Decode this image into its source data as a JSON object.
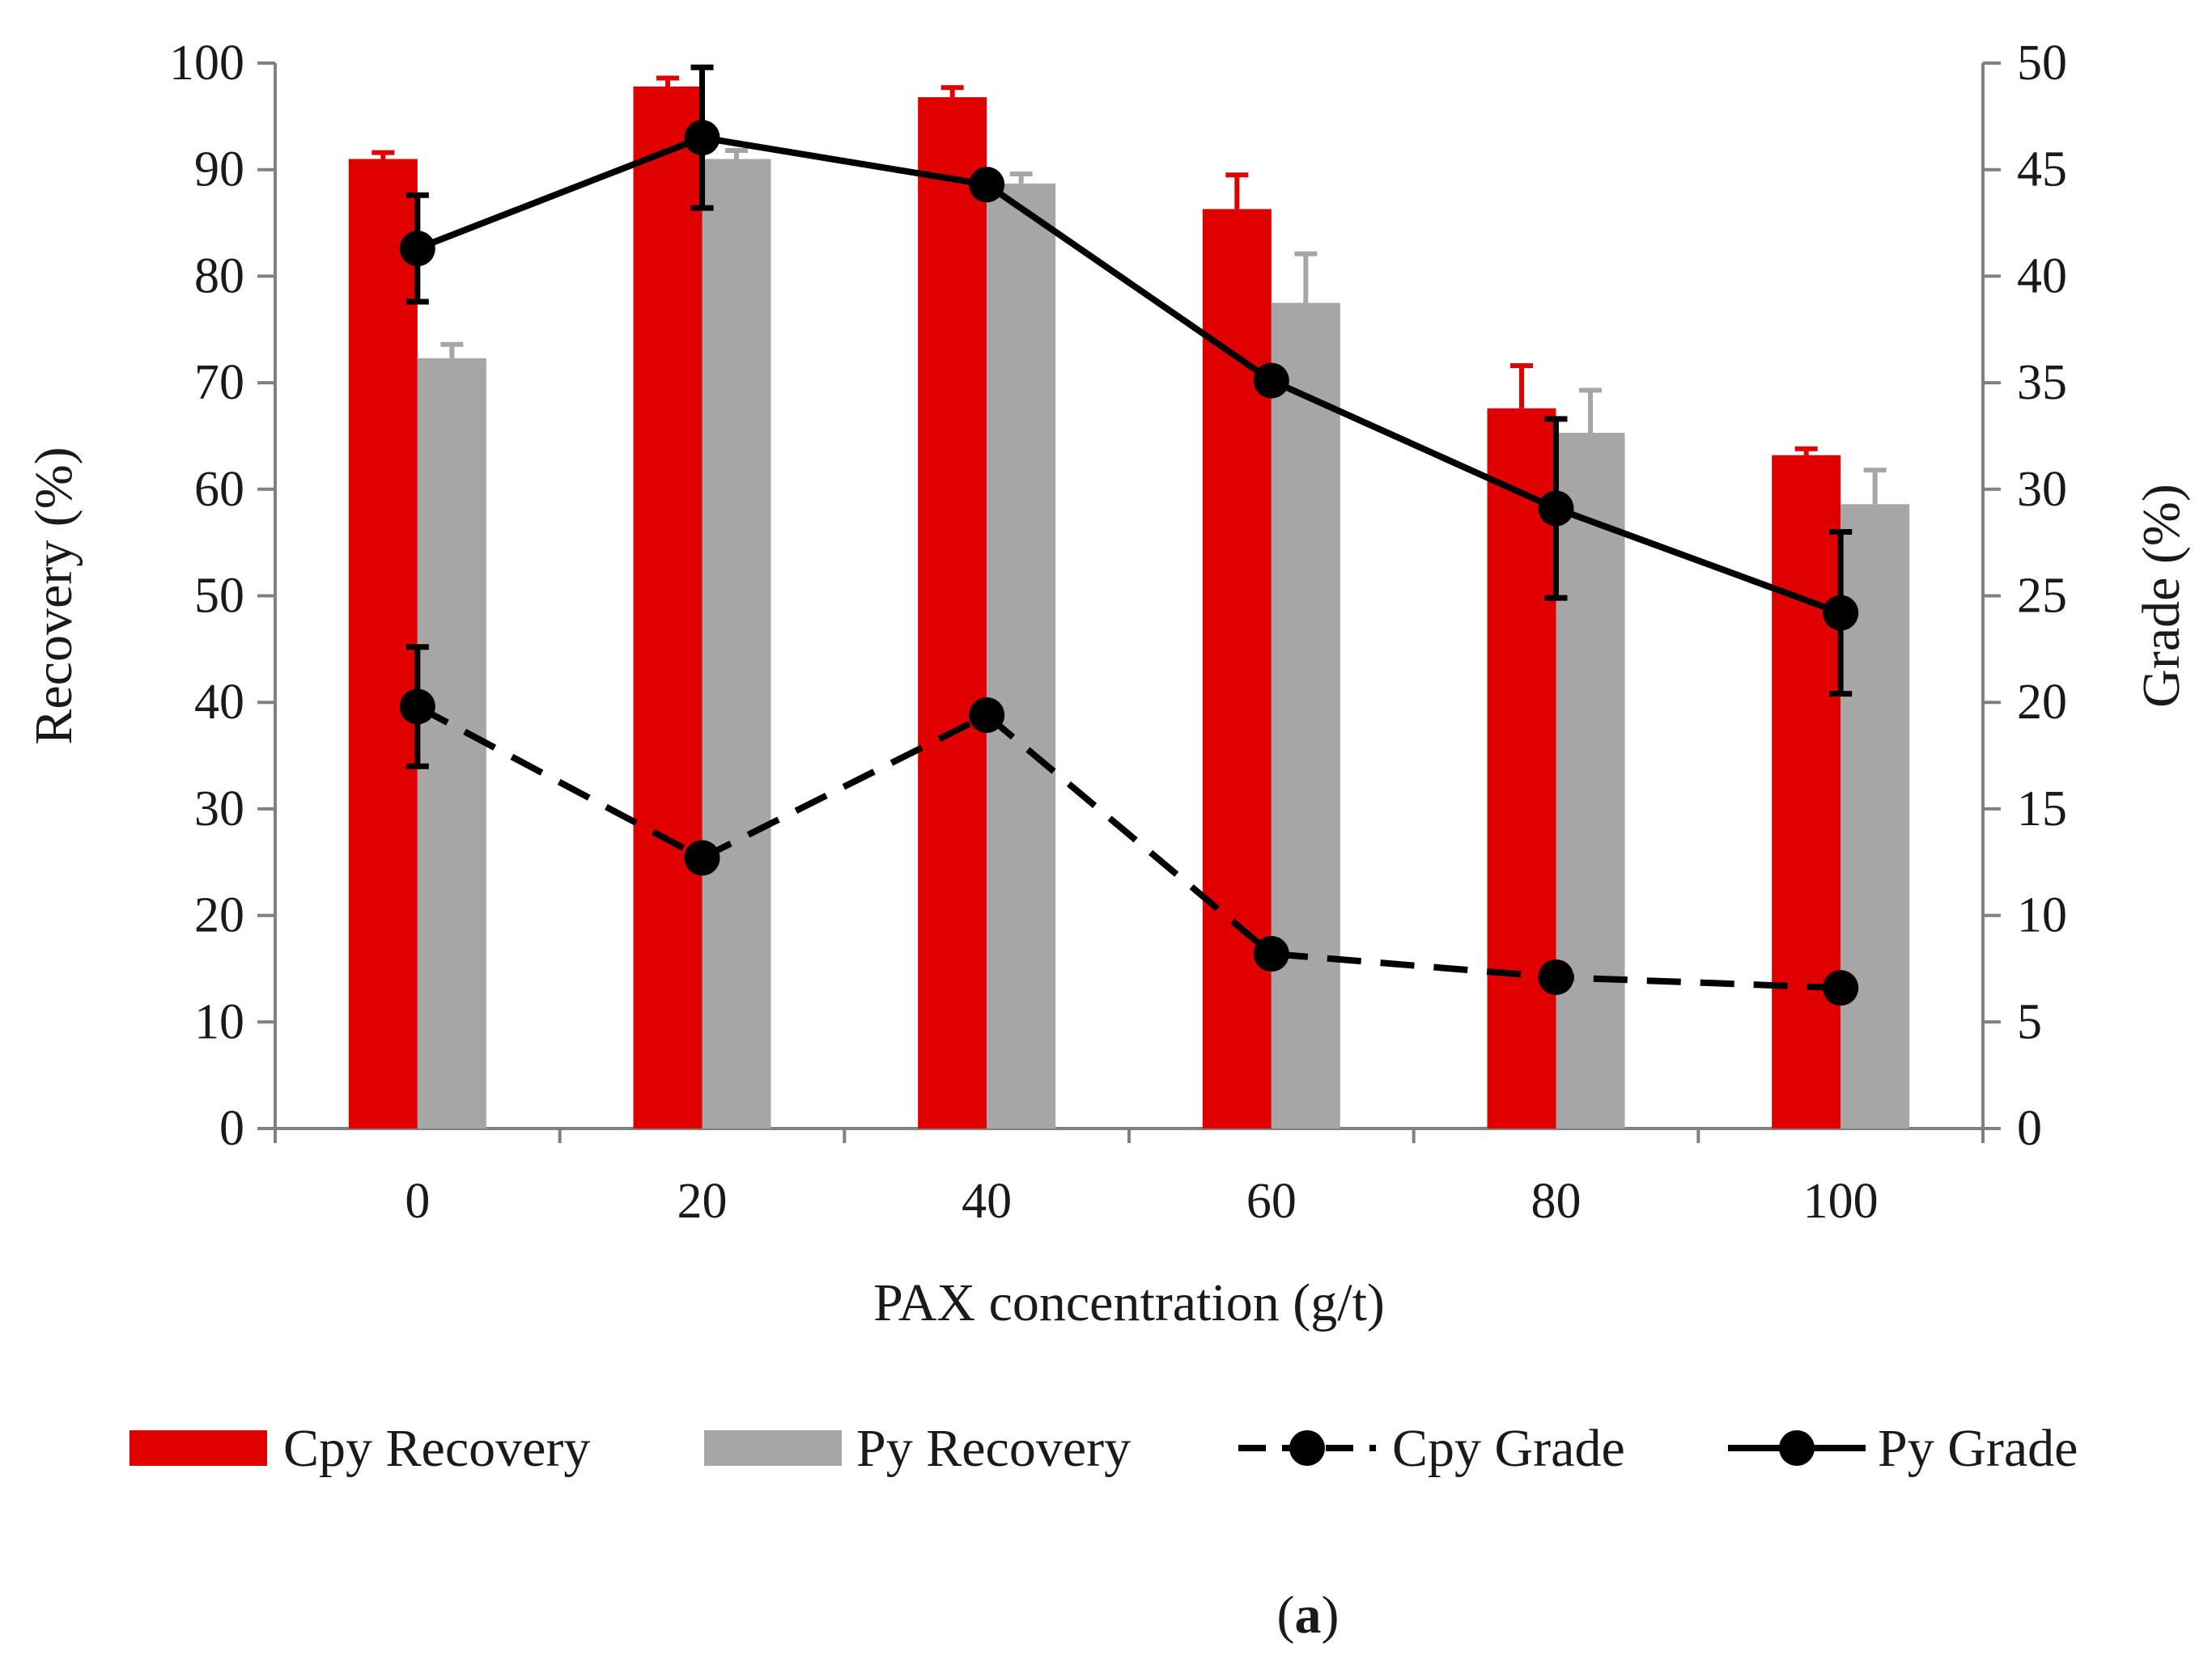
{
  "chart_data": {
    "type": "bar",
    "caption": {
      "open": "(",
      "letter": "a",
      "close": ")"
    },
    "xlabel": "PAX concentration (g/t)",
    "ylabel_left": "Recovery (%)",
    "ylabel_right": "Grade (%)",
    "categories": [
      "0",
      "20",
      "40",
      "60",
      "80",
      "100"
    ],
    "ylim_left": [
      0,
      100
    ],
    "ylim_right": [
      0,
      50
    ],
    "yticks_left": [
      "0",
      "10",
      "20",
      "30",
      "40",
      "50",
      "60",
      "70",
      "80",
      "90",
      "100"
    ],
    "yticks_right": [
      "0",
      "5",
      "10",
      "15",
      "20",
      "25",
      "30",
      "35",
      "40",
      "45",
      "50"
    ],
    "series": [
      {
        "name": "Cpy Recovery",
        "kind": "bar",
        "axis": "left",
        "color": "#e00000",
        "values": [
          91.0,
          97.8,
          96.8,
          86.3,
          67.6,
          63.2
        ],
        "errors": [
          0.6,
          0.8,
          0.9,
          3.2,
          4.0,
          0.6
        ]
      },
      {
        "name": "Py Recovery",
        "kind": "bar",
        "axis": "left",
        "color": "#a6a6a6",
        "values": [
          72.3,
          91.0,
          88.7,
          77.5,
          65.3,
          58.6
        ],
        "errors": [
          1.3,
          0.8,
          0.9,
          4.6,
          4.0,
          3.2
        ]
      },
      {
        "name": "Cpy Grade",
        "kind": "line",
        "axis": "right",
        "color": "#000000",
        "dashed": true,
        "values": [
          19.8,
          12.7,
          19.4,
          8.2,
          7.1,
          6.6
        ],
        "errors": [
          2.8,
          0,
          0,
          0,
          0,
          0
        ]
      },
      {
        "name": "Py Grade",
        "kind": "line",
        "axis": "right",
        "color": "#000000",
        "dashed": false,
        "values": [
          41.3,
          46.5,
          44.3,
          35.1,
          29.1,
          24.2
        ],
        "errors": [
          2.5,
          3.3,
          0,
          0,
          4.2,
          3.8
        ]
      }
    ],
    "legend_position": "bottom"
  }
}
